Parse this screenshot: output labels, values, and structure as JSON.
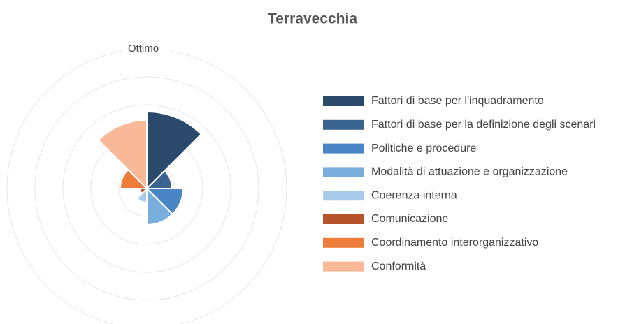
{
  "chart_data": {
    "type": "polarArea",
    "title": "Terravecchia",
    "categories": [
      "Fattori di base per l'inquadramento",
      "Fattori di base per la definizione degli scenari",
      "Politiche e procedure",
      "Modalità di attuazione e organizzazione",
      "Coerenza interna",
      "Comunicazione",
      "Coordinamento interorganizzativo",
      "Conformità"
    ],
    "values": [
      2.75,
      0.9,
      1.3,
      1.3,
      0.5,
      0.25,
      0.95,
      2.45
    ],
    "colors": [
      "#2b4a6b",
      "#3a6591",
      "#4a86c5",
      "#7aaedc",
      "#a9cbea",
      "#b5532a",
      "#ee7d3b",
      "#f9b999"
    ],
    "rlim": [
      0,
      5
    ],
    "rgrid": [
      1,
      2,
      3,
      4
    ],
    "rticks": [
      {
        "value": 5,
        "label": "Ottimo"
      }
    ]
  }
}
